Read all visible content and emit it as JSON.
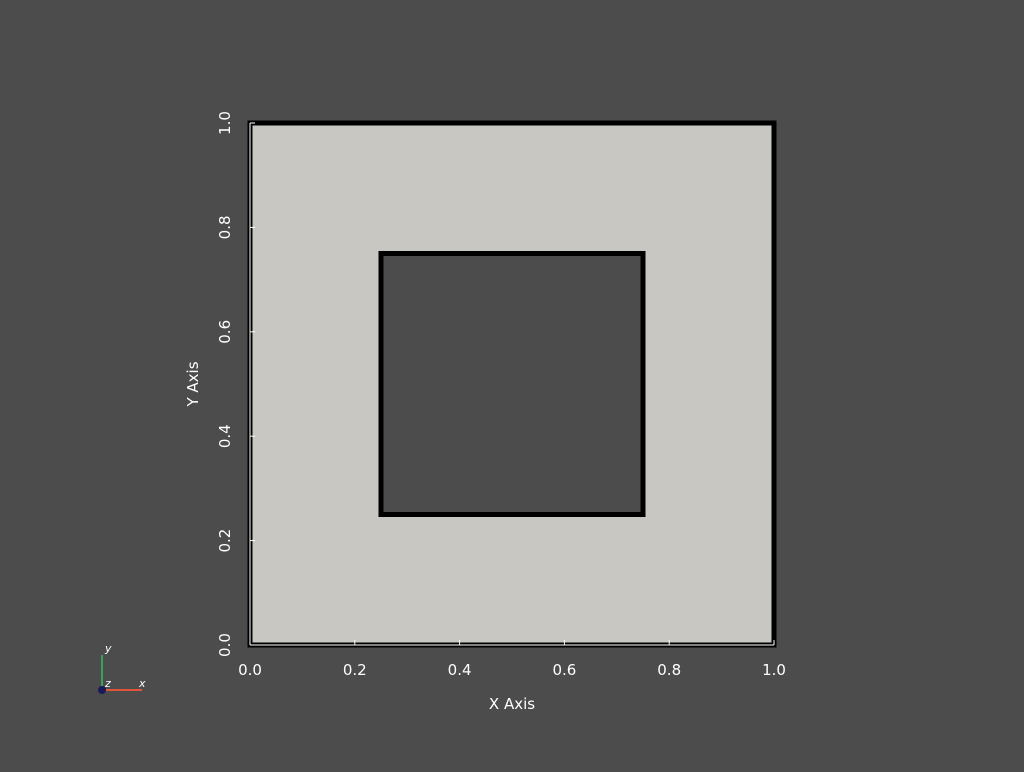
{
  "chart_data": {
    "type": "polygon-plot",
    "xlabel": "X Axis",
    "ylabel": "Y Axis",
    "xlim": [
      0.0,
      1.0
    ],
    "ylim": [
      0.0,
      1.0
    ],
    "xticks": [
      "0.0",
      "0.2",
      "0.4",
      "0.6",
      "0.8",
      "1.0"
    ],
    "yticks": [
      "0.0",
      "0.2",
      "0.4",
      "0.6",
      "0.8",
      "1.0"
    ],
    "xtick_values": [
      0.0,
      0.2,
      0.4,
      0.6,
      0.8,
      1.0
    ],
    "ytick_values": [
      0.0,
      0.2,
      0.4,
      0.6,
      0.8,
      1.0
    ],
    "grid": false,
    "shapes": [
      {
        "name": "outer-square",
        "fill": "#c9c7c1",
        "outline": "#000000",
        "vertices": [
          [
            0.0,
            0.0
          ],
          [
            1.0,
            0.0
          ],
          [
            1.0,
            1.0
          ],
          [
            0.0,
            1.0
          ]
        ]
      },
      {
        "name": "inner-square-hole",
        "fill": "#4c4c4c",
        "outline": "#000000",
        "vertices": [
          [
            0.25,
            0.25
          ],
          [
            0.75,
            0.25
          ],
          [
            0.75,
            0.75
          ],
          [
            0.25,
            0.75
          ]
        ]
      }
    ]
  },
  "orientation_triad": {
    "x_label": "x",
    "y_label": "y",
    "z_label": "z",
    "x_color": "#e0553a",
    "y_color": "#3aa05a",
    "z_color": "#1a1a5a"
  },
  "colors": {
    "background": "#4c4c4c",
    "axis": "#ffffff",
    "edge": "#000000"
  }
}
